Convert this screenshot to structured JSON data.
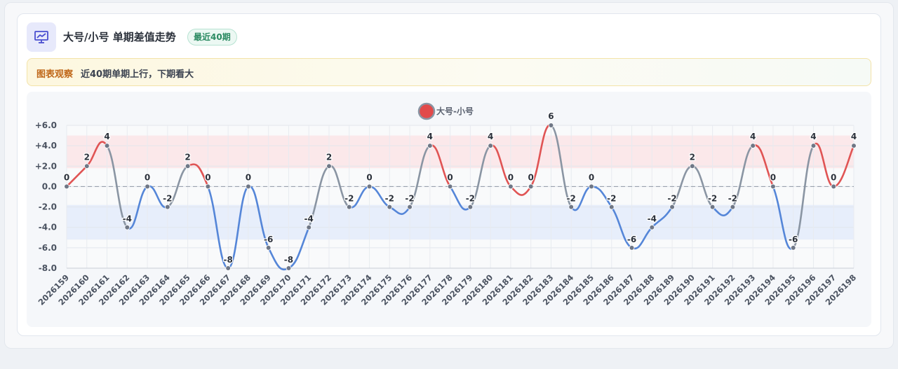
{
  "header": {
    "title": "大号/小号 单期差值走势",
    "badge": "最近40期",
    "icon": "chart-line-icon"
  },
  "observation": {
    "label": "图表观察",
    "text": "近40期单期上行，下期看大"
  },
  "colors": {
    "up": "#e05454",
    "down": "#5586d8",
    "flat": "#8a95a3",
    "upper_band": "#fbe4e6",
    "lower_band": "#e4ebfa",
    "point": "#6f7786"
  },
  "chart_data": {
    "type": "line",
    "legend": {
      "label": "大号-小号",
      "position": "top-center"
    },
    "categories": [
      "2026159",
      "2026160",
      "2026161",
      "2026162",
      "2026163",
      "2026164",
      "2026165",
      "2026166",
      "2026167",
      "2026168",
      "2026169",
      "2026170",
      "2026171",
      "2026172",
      "2026173",
      "2026174",
      "2026175",
      "2026176",
      "2026177",
      "2026178",
      "2026179",
      "2026180",
      "2026181",
      "2026182",
      "2026183",
      "2026184",
      "2026185",
      "2026186",
      "2026187",
      "2026188",
      "2026189",
      "2026190",
      "2026191",
      "2026192",
      "2026193",
      "2026194",
      "2026195",
      "2026196",
      "2026197",
      "2026198"
    ],
    "series": [
      {
        "name": "大号-小号",
        "values": [
          0,
          2,
          4,
          -4,
          0,
          -2,
          2,
          0,
          -8,
          0,
          -6,
          -8,
          -4,
          2,
          -2,
          0,
          -2,
          -2,
          4,
          0,
          -2,
          4,
          0,
          0,
          6,
          -2,
          0,
          -2,
          -6,
          -4,
          -2,
          2,
          -2,
          -2,
          4,
          0,
          -6,
          4,
          0,
          4
        ]
      }
    ],
    "ylim": [
      -8,
      6
    ],
    "yticks": [
      "+6.0",
      "+4.0",
      "+2.0",
      "0.0",
      "-2.0",
      "-4.0",
      "-6.0",
      "-8.0"
    ],
    "ytick_values": [
      6,
      4,
      2,
      0,
      -2,
      -4,
      -6,
      -8
    ],
    "bands": [
      {
        "from": 1.8,
        "to": 5,
        "tone": "upper"
      },
      {
        "from": -5.2,
        "to": -1.8,
        "tone": "lower"
      }
    ],
    "zero_line": "dashed",
    "grid": true
  }
}
